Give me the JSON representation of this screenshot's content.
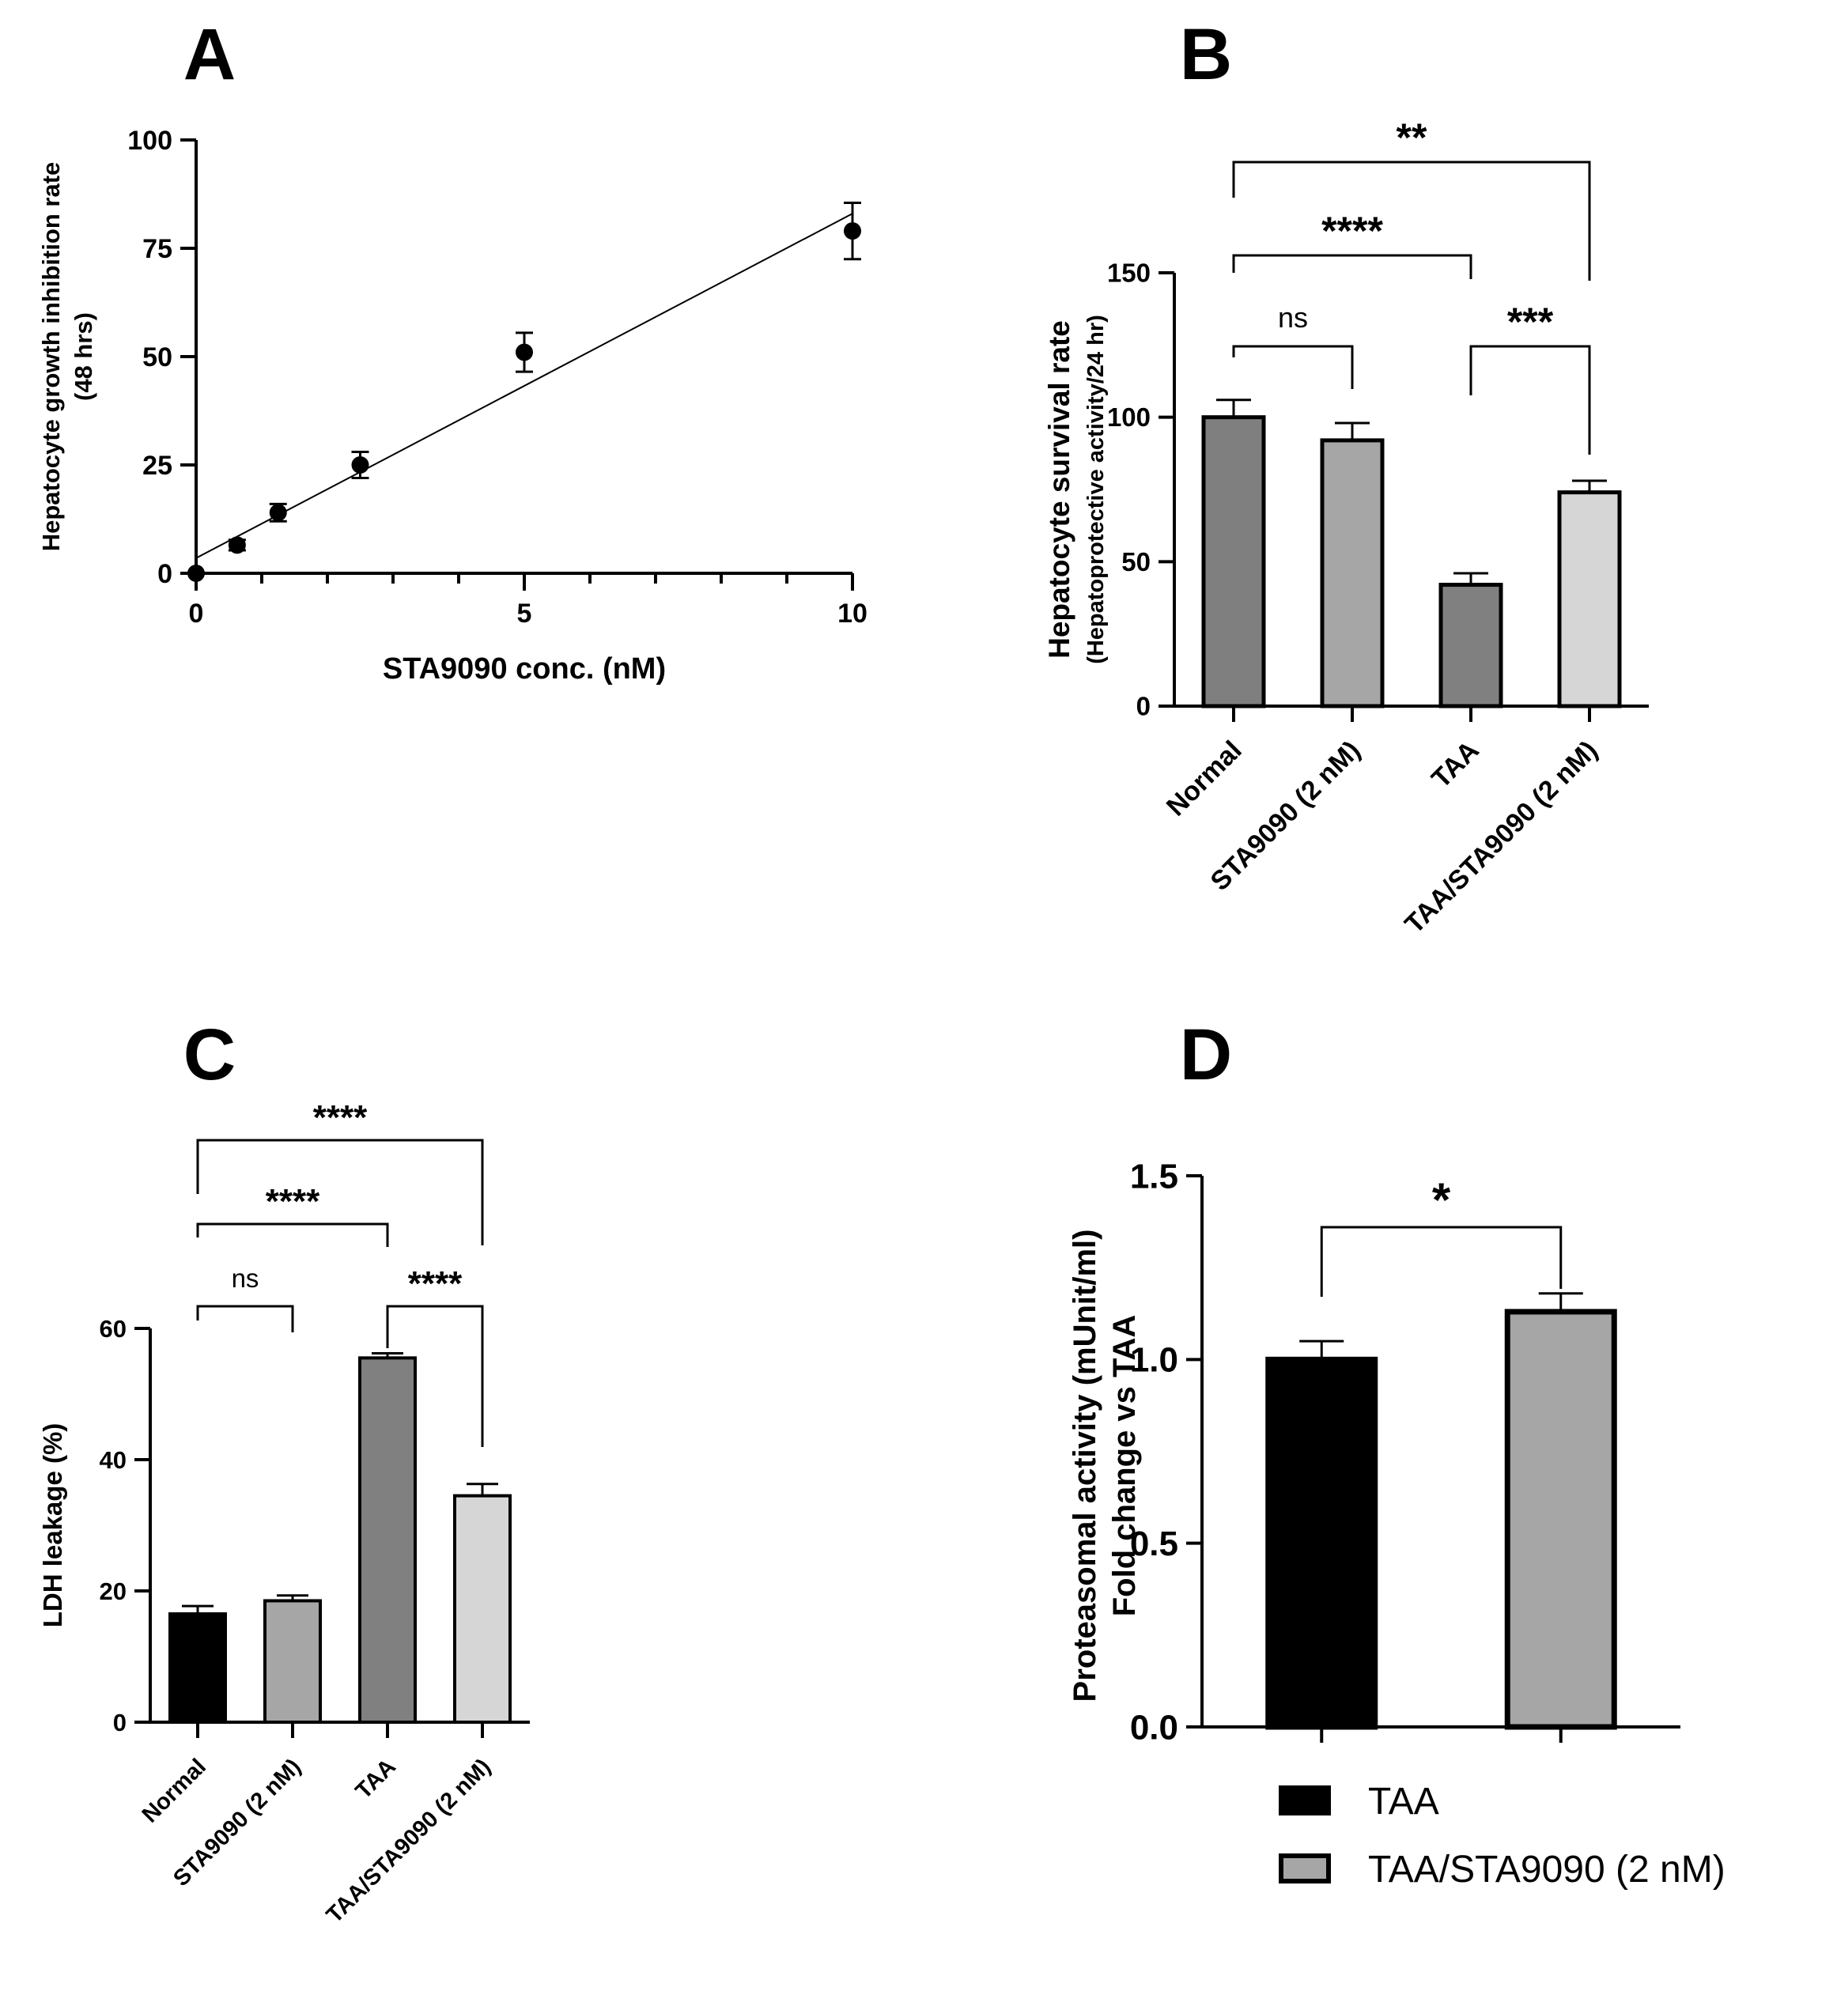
{
  "figure": {
    "panels": [
      "A",
      "B",
      "C",
      "D"
    ]
  },
  "chart_data": [
    {
      "panel": "A",
      "type": "scatter",
      "xlabel": "STA9090 conc. (nM)",
      "ylabel": "Hepatocyte growth inhibition rate",
      "ylabel2": "(48 hrs)",
      "xlim": [
        0,
        10
      ],
      "ylim": [
        0,
        100
      ],
      "xticks": [
        0,
        5,
        10
      ],
      "yticks": [
        0,
        25,
        50,
        75,
        100
      ],
      "points": [
        {
          "x": 0,
          "y": 0,
          "err": 0
        },
        {
          "x": 0.625,
          "y": 6.5,
          "err": 1.2
        },
        {
          "x": 1.25,
          "y": 14,
          "err": 2
        },
        {
          "x": 2.5,
          "y": 25,
          "err": 3
        },
        {
          "x": 5,
          "y": 51,
          "err": 4.5
        },
        {
          "x": 10,
          "y": 79,
          "err": 6.5
        }
      ],
      "fit_line": {
        "x": [
          0,
          10
        ],
        "y": [
          3.5,
          83
        ]
      }
    },
    {
      "panel": "B",
      "type": "bar",
      "ylabel": "Hepatocyte survival rate",
      "ylabel2": "(Hepatoprotective activity/24 hr)",
      "ylim": [
        0,
        150
      ],
      "yticks": [
        0,
        50,
        100,
        150
      ],
      "categories": [
        "Normal",
        "STA9090 (2 nM)",
        "TAA",
        "TAA/STA9090 (2 nM)"
      ],
      "values": [
        100,
        92,
        42,
        74
      ],
      "errors": [
        6,
        6,
        4,
        4
      ],
      "colors": [
        "#7f7f7f",
        "#a6a6a6",
        "#808080",
        "#d6d6d6"
      ],
      "significance": [
        {
          "from": 0,
          "to": 3,
          "label": "**"
        },
        {
          "from": 0,
          "to": 2,
          "label": "****"
        },
        {
          "from": 0,
          "to": 1,
          "label": "ns"
        },
        {
          "from": 2,
          "to": 3,
          "label": "***"
        }
      ]
    },
    {
      "panel": "C",
      "type": "bar",
      "ylabel": "LDH leakage (%)",
      "ylim": [
        0,
        60
      ],
      "yticks": [
        0,
        20,
        40,
        60
      ],
      "categories": [
        "Normal",
        "STA9090 (2 nM)",
        "TAA",
        "TAA/STA9090 (2 nM)"
      ],
      "values": [
        16.5,
        18.5,
        55.5,
        34.5
      ],
      "errors": [
        1.2,
        0.8,
        0.7,
        1.8
      ],
      "colors": [
        "#000000",
        "#a6a6a6",
        "#808080",
        "#d6d6d6"
      ],
      "significance": [
        {
          "from": 0,
          "to": 3,
          "label": "****"
        },
        {
          "from": 0,
          "to": 2,
          "label": "****"
        },
        {
          "from": 0,
          "to": 1,
          "label": "ns"
        },
        {
          "from": 2,
          "to": 3,
          "label": "****"
        }
      ]
    },
    {
      "panel": "D",
      "type": "bar",
      "ylabel": "Proteasomal activity (mUnit/ml)",
      "ylabel2": "Fold change vs TAA",
      "ylim": [
        0,
        1.5
      ],
      "yticks": [
        "0.0",
        "0.5",
        "1.0",
        "1.5"
      ],
      "categories": [
        "TAA",
        "TAA/STA9090 (2 nM)"
      ],
      "values": [
        1.0,
        1.13
      ],
      "errors": [
        0.05,
        0.05
      ],
      "colors": [
        "#000000",
        "#a6a6a6"
      ],
      "legend": [
        "TAA",
        "TAA/STA9090 (2 nM)"
      ],
      "significance": [
        {
          "from": 0,
          "to": 1,
          "label": "*"
        }
      ]
    }
  ]
}
